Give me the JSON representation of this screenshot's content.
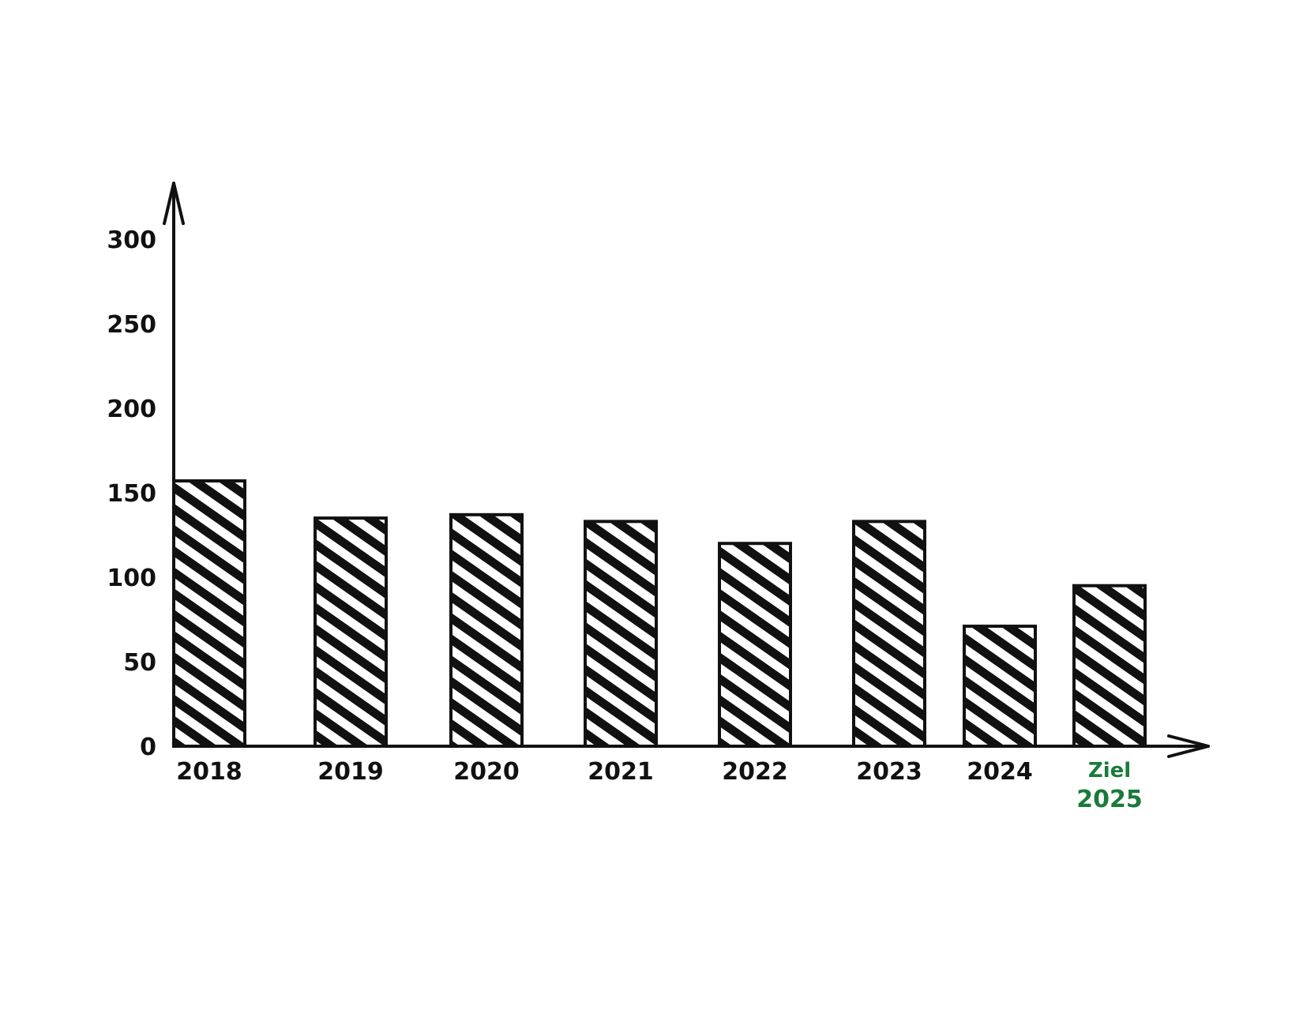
{
  "chart_data": {
    "type": "bar",
    "title": "",
    "xlabel": "",
    "ylabel": "",
    "ylim": [
      0,
      300
    ],
    "yticks": [
      0,
      50,
      100,
      150,
      200,
      250,
      300
    ],
    "categories": [
      {
        "lines": [
          "2018"
        ],
        "highlight": false
      },
      {
        "lines": [
          "2019"
        ],
        "highlight": false
      },
      {
        "lines": [
          "2020"
        ],
        "highlight": false
      },
      {
        "lines": [
          "2021"
        ],
        "highlight": false
      },
      {
        "lines": [
          "2022"
        ],
        "highlight": false
      },
      {
        "lines": [
          "2023"
        ],
        "highlight": false
      },
      {
        "lines": [
          "2024"
        ],
        "highlight": false
      },
      {
        "lines": [
          "Ziel",
          "2025"
        ],
        "highlight": true
      }
    ],
    "values": [
      157,
      135,
      137,
      133,
      120,
      133,
      71,
      95
    ],
    "grid": false,
    "legend": "none",
    "style": "hand-drawn hatched bars"
  },
  "colors": {
    "ink": "#111111",
    "highlight": "#1a7a3a",
    "background": "#ffffff"
  }
}
